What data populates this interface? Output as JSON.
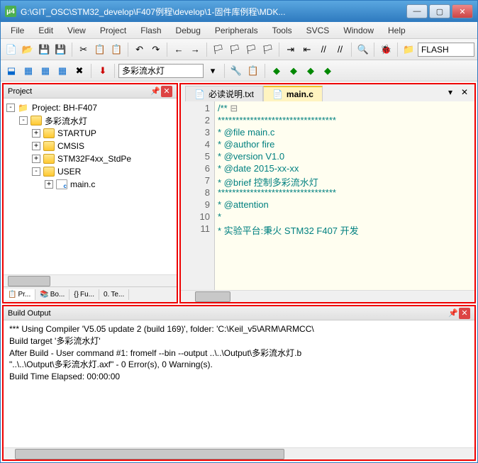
{
  "titlebar": {
    "iconText": "μ4",
    "text": "G:\\GIT_OSC\\STM32_develop\\F407例程\\develop\\1-固件库例程\\MDK..."
  },
  "menu": [
    "File",
    "Edit",
    "View",
    "Project",
    "Flash",
    "Debug",
    "Peripherals",
    "Tools",
    "SVCS",
    "Window",
    "Help"
  ],
  "toolbar1": {
    "targetCombo": "FLASH"
  },
  "toolbar2": {
    "projectCombo": "多彩流水灯"
  },
  "projectPanel": {
    "title": "Project",
    "tree": [
      {
        "indent": 0,
        "toggle": "-",
        "icon": "proj",
        "label": "Project: BH-F407"
      },
      {
        "indent": 1,
        "toggle": "-",
        "icon": "folder",
        "label": "多彩流水灯"
      },
      {
        "indent": 2,
        "toggle": "+",
        "icon": "folder",
        "label": "STARTUP"
      },
      {
        "indent": 2,
        "toggle": "+",
        "icon": "folder",
        "label": "CMSIS"
      },
      {
        "indent": 2,
        "toggle": "+",
        "icon": "folder",
        "label": "STM32F4xx_StdPe"
      },
      {
        "indent": 2,
        "toggle": "-",
        "icon": "folder",
        "label": "USER"
      },
      {
        "indent": 3,
        "toggle": "+",
        "icon": "filec",
        "label": "main.c"
      }
    ],
    "tabs": [
      "Pr...",
      "Bo...",
      "Fu...",
      "Te..."
    ]
  },
  "editor": {
    "tabs": [
      {
        "label": "必读说明.txt",
        "active": false,
        "icon": "📄"
      },
      {
        "label": "main.c",
        "active": true,
        "icon": "📄"
      }
    ],
    "lines": [
      "/**",
      "  *********************************",
      "  * @file    main.c",
      "  * @author  fire",
      "  * @version V1.0",
      "  * @date    2015-xx-xx",
      "  * @brief   控制多彩流水灯",
      "  *********************************",
      "  * @attention",
      "  *",
      "  * 实验平台:秉火  STM32 F407 开发"
    ]
  },
  "buildPanel": {
    "title": "Build Output",
    "lines": [
      "*** Using Compiler 'V5.05 update 2 (build 169)', folder: 'C:\\Keil_v5\\ARM\\ARMCC\\",
      "Build target '多彩流水灯'",
      "After Build - User command #1: fromelf --bin --output ..\\..\\Output\\多彩流水灯.b",
      "\"..\\..\\Output\\多彩流水灯.axf\" - 0 Error(s), 0 Warning(s).",
      "Build Time Elapsed:  00:00:00"
    ]
  }
}
